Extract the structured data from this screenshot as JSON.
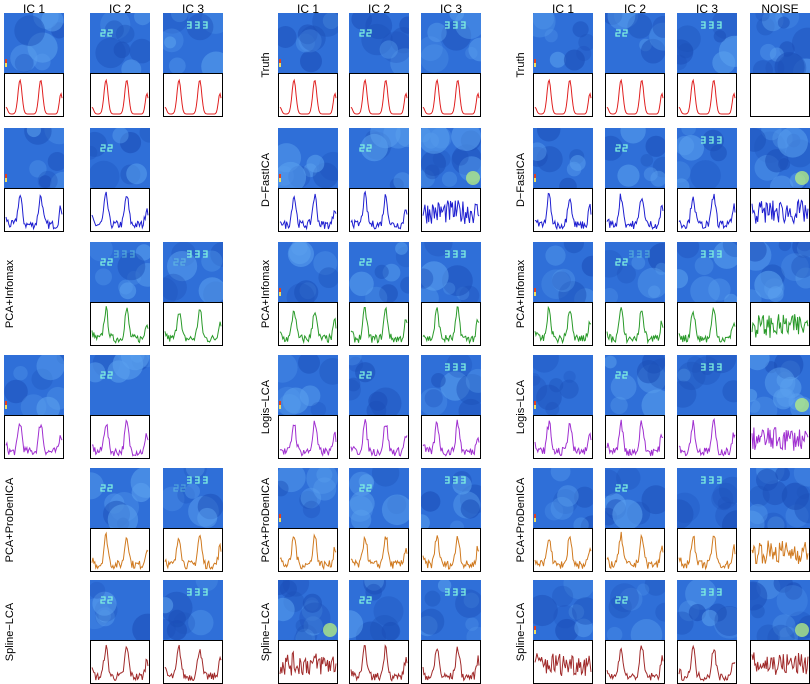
{
  "chart_data": {
    "type": "image-grid",
    "panels": [
      {
        "columns": [
          "IC 1",
          "IC 2",
          "IC 3"
        ],
        "rows": [
          {
            "method": "Truth",
            "color": "#e02020",
            "cells": [
              {
                "component": "IC 1",
                "map": "spot",
                "trace": "clean-peaks"
              },
              {
                "component": "IC 2",
                "map": "22",
                "trace": "clean-peaks"
              },
              {
                "component": "IC 3",
                "map": "333",
                "trace": "clean-peaks"
              }
            ]
          },
          {
            "method": "D−FastICA",
            "color": "#1f1fd0",
            "cells": [
              {
                "component": "IC 1",
                "map": "spot",
                "trace": "noisy-peaks"
              },
              {
                "component": "IC 2",
                "map": "22",
                "trace": "noisy-peaks"
              },
              {
                "component": "IC 3",
                "map": null,
                "trace": null
              }
            ]
          },
          {
            "method": "PCA+Infomax",
            "color": "#2a9a2a",
            "cells": [
              {
                "component": "IC 1",
                "map": null,
                "trace": null
              },
              {
                "component": "IC 2",
                "map": "22+333",
                "trace": "noisy-peaks"
              },
              {
                "component": "IC 3",
                "map": "333+22",
                "trace": "noisy-peaks"
              }
            ]
          },
          {
            "method": "Logis−LCA",
            "color": "#a030d0",
            "cells": [
              {
                "component": "IC 1",
                "map": "spot",
                "trace": "noisy-peaks"
              },
              {
                "component": "IC 2",
                "map": "22",
                "trace": "noisy-peaks"
              },
              {
                "component": "IC 3",
                "map": null,
                "trace": null
              }
            ]
          },
          {
            "method": "PCA+ProDenICA",
            "color": "#d07a20",
            "cells": [
              {
                "component": "IC 1",
                "map": null,
                "trace": null
              },
              {
                "component": "IC 2",
                "map": "22",
                "trace": "noisy-peaks"
              },
              {
                "component": "IC 3",
                "map": "333+22",
                "trace": "noisy-peaks"
              }
            ]
          },
          {
            "method": "Spline−LCA",
            "color": "#a02a2a",
            "cells": [
              {
                "component": "IC 1",
                "map": null,
                "trace": null
              },
              {
                "component": "IC 2",
                "map": "22",
                "trace": "noisy-peaks"
              },
              {
                "component": "IC 3",
                "map": "333",
                "trace": "noisy-peaks"
              }
            ]
          }
        ]
      },
      {
        "columns": [
          "IC 1",
          "IC 2",
          "IC 3"
        ],
        "rows": [
          {
            "method": "Truth",
            "color": "#e02020",
            "cells": [
              {
                "component": "IC 1",
                "map": "spot",
                "trace": "clean-peaks"
              },
              {
                "component": "IC 2",
                "map": "22",
                "trace": "clean-peaks"
              },
              {
                "component": "IC 3",
                "map": "333",
                "trace": "clean-peaks"
              }
            ]
          },
          {
            "method": "D−FastICA",
            "color": "#1f1fd0",
            "cells": [
              {
                "component": "IC 1",
                "map": "spot",
                "trace": "noisy-peaks"
              },
              {
                "component": "IC 2",
                "map": "22",
                "trace": "noisy-peaks"
              },
              {
                "component": "IC 3",
                "map": "blob",
                "trace": "noise"
              }
            ]
          },
          {
            "method": "PCA+Infomax",
            "color": "#2a9a2a",
            "cells": [
              {
                "component": "IC 1",
                "map": "spot",
                "trace": "noisy-peaks"
              },
              {
                "component": "IC 2",
                "map": "22",
                "trace": "noisy-peaks"
              },
              {
                "component": "IC 3",
                "map": "333",
                "trace": "noisy-peaks"
              }
            ]
          },
          {
            "method": "Logis−LCA",
            "color": "#a030d0",
            "cells": [
              {
                "component": "IC 1",
                "map": "spot",
                "trace": "noisy-peaks"
              },
              {
                "component": "IC 2",
                "map": "22",
                "trace": "noisy-peaks"
              },
              {
                "component": "IC 3",
                "map": "333",
                "trace": "noisy-peaks"
              }
            ]
          },
          {
            "method": "PCA+ProDenICA",
            "color": "#d07a20",
            "cells": [
              {
                "component": "IC 1",
                "map": "spot",
                "trace": "noisy-peaks"
              },
              {
                "component": "IC 2",
                "map": "22",
                "trace": "noisy-peaks"
              },
              {
                "component": "IC 3",
                "map": "333",
                "trace": "noisy-peaks"
              }
            ]
          },
          {
            "method": "Spline−LCA",
            "color": "#a02a2a",
            "cells": [
              {
                "component": "IC 1",
                "map": "blob",
                "trace": "noise"
              },
              {
                "component": "IC 2",
                "map": "22",
                "trace": "noisy-peaks"
              },
              {
                "component": "IC 3",
                "map": "333",
                "trace": "noisy-peaks"
              }
            ]
          }
        ]
      },
      {
        "columns": [
          "IC 1",
          "IC 2",
          "IC 3",
          "NOISE"
        ],
        "rows": [
          {
            "method": "Truth",
            "color": "#e02020",
            "cells": [
              {
                "component": "IC 1",
                "map": "spot",
                "trace": "clean-peaks"
              },
              {
                "component": "IC 2",
                "map": "22",
                "trace": "clean-peaks"
              },
              {
                "component": "IC 3",
                "map": "333",
                "trace": "clean-peaks"
              },
              {
                "component": "NOISE",
                "map": "noise",
                "trace": "empty"
              }
            ]
          },
          {
            "method": "D−FastICA",
            "color": "#1f1fd0",
            "cells": [
              {
                "component": "IC 1",
                "map": "spot",
                "trace": "noisy-peaks"
              },
              {
                "component": "IC 2",
                "map": "22",
                "trace": "noisy-peaks"
              },
              {
                "component": "IC 3",
                "map": "333",
                "trace": "noisy-peaks"
              },
              {
                "component": "NOISE",
                "map": "blob",
                "trace": "noise"
              }
            ]
          },
          {
            "method": "PCA+Infomax",
            "color": "#2a9a2a",
            "cells": [
              {
                "component": "IC 1",
                "map": "spot",
                "trace": "noisy-peaks"
              },
              {
                "component": "IC 2",
                "map": "22+333",
                "trace": "noisy-peaks"
              },
              {
                "component": "IC 3",
                "map": "333",
                "trace": "noisy-peaks"
              },
              {
                "component": "NOISE",
                "map": "noise",
                "trace": "noise"
              }
            ]
          },
          {
            "method": "Logis−LCA",
            "color": "#a030d0",
            "cells": [
              {
                "component": "IC 1",
                "map": "spot",
                "trace": "noisy-peaks"
              },
              {
                "component": "IC 2",
                "map": "22",
                "trace": "noisy-peaks"
              },
              {
                "component": "IC 3",
                "map": "333",
                "trace": "noisy-peaks"
              },
              {
                "component": "NOISE",
                "map": "blob",
                "trace": "noise"
              }
            ]
          },
          {
            "method": "PCA+ProDenICA",
            "color": "#d07a20",
            "cells": [
              {
                "component": "IC 1",
                "map": "spot",
                "trace": "noisy-peaks"
              },
              {
                "component": "IC 2",
                "map": "22",
                "trace": "noisy-peaks"
              },
              {
                "component": "IC 3",
                "map": "333",
                "trace": "noisy-peaks"
              },
              {
                "component": "NOISE",
                "map": "noise",
                "trace": "noise"
              }
            ]
          },
          {
            "method": "Spline−LCA",
            "color": "#a02a2a",
            "cells": [
              {
                "component": "IC 1",
                "map": "spot",
                "trace": "noise"
              },
              {
                "component": "IC 2",
                "map": "22",
                "trace": "noisy-peaks"
              },
              {
                "component": "IC 3",
                "map": "333",
                "trace": "noisy-peaks"
              },
              {
                "component": "NOISE",
                "map": "blob",
                "trace": "noise"
              }
            ]
          }
        ]
      }
    ],
    "colormap": {
      "background": "#2f6fd8",
      "dark": "#1c4fb8",
      "light": "#5aa0ee",
      "cyan": "#7ff0e0",
      "green": "#b8f080",
      "spot_top": "#e04020",
      "spot_bottom": "#f0e060"
    }
  }
}
